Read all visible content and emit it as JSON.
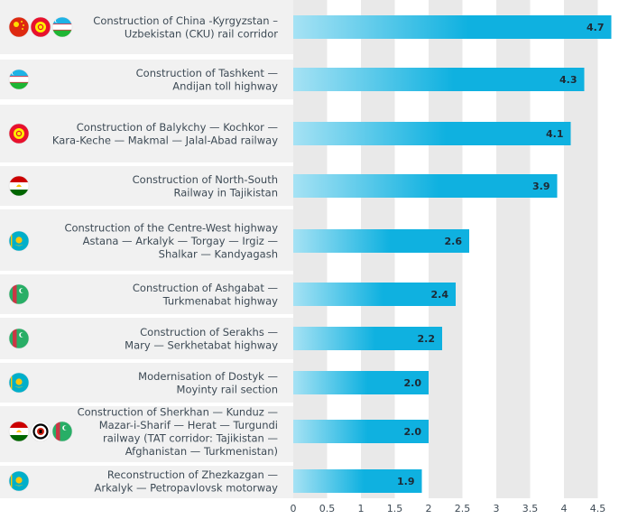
{
  "chart_data": {
    "type": "bar",
    "orientation": "horizontal",
    "title": "",
    "xlabel": "",
    "ylabel": "",
    "xlim": [
      0,
      4.7
    ],
    "ticks": [
      "0",
      "0.5",
      "1",
      "1.5",
      "2",
      "2.5",
      "3",
      "3.5",
      "4",
      "4.5"
    ],
    "grid": true,
    "categories": [
      "Construction of China -Kyrgyzstan – Uzbekistan (CKU) rail corridor",
      "Construction of Tashkent — Andijan toll highway",
      "Construction of Balykchy — Kochkor — Kara-Keche — Makmal — Jalal-Abad railway",
      "Construction of North-South Railway in Tajikistan",
      "Construction of the Centre-West highway Astana — Arkalyk — Torgay — Irgiz — Shalkar — Kandyagash",
      "Construction of Ashgabat — Turkmenabat highway",
      "Construction of Serakhs — Mary — Serkhetabat highway",
      "Modernisation of Dostyk — Moyinty rail section",
      "Construction of Sherkhan — Kunduz — Mazar-i-Sharif — Herat — Turgundi railway (TAT corridor: Tajikistan — Afghanistan — Turkmenistan)",
      "Reconstruction of Zhezkazgan — Arkalyk — Petropavlovsk motorway"
    ],
    "label_lines": [
      [
        "Construction of China -Kyrgyzstan –",
        "Uzbekistan (CKU) rail corridor"
      ],
      [
        "Construction of Tashkent —",
        "Andijan toll highway"
      ],
      [
        "Construction of Balykchy — Kochkor —",
        "Kara-Keche — Makmal — Jalal-Abad railway"
      ],
      [
        "Construction of North-South",
        "Railway in Tajikistan"
      ],
      [
        "Construction of the Centre-West highway",
        "Astana — Arkalyk — Torgay — Irgiz —",
        "Shalkar — Kandyagash"
      ],
      [
        "Construction of Ashgabat —",
        "Turkmenabat highway"
      ],
      [
        "Construction of Serakhs —",
        "Mary — Serkhetabat highway"
      ],
      [
        "Modernisation of Dostyk —",
        "Moyinty rail section"
      ],
      [
        "Construction of Sherkhan — Kunduz —",
        "Mazar-i-Sharif — Herat — Turgundi",
        "railway (TAT corridor: Tajikistan —",
        "Afghanistan — Turkmenistan)"
      ],
      [
        "Reconstruction of Zhezkazgan —",
        "Arkalyk — Petropavlovsk motorway"
      ]
    ],
    "values": [
      4.7,
      4.3,
      4.1,
      3.9,
      2.6,
      2.4,
      2.2,
      2.0,
      2.0,
      1.9
    ],
    "value_labels": [
      "4.7",
      "4.3",
      "4.1",
      "3.9",
      "2.6",
      "2.4",
      "2.2",
      "2.0",
      "2.0",
      "1.9"
    ],
    "flags": [
      [
        "china-flag-icon",
        "kyrgyzstan-flag-icon",
        "uzbekistan-flag-icon"
      ],
      [
        "uzbekistan-flag-icon"
      ],
      [
        "kyrgyzstan-flag-icon"
      ],
      [
        "tajikistan-flag-icon"
      ],
      [
        "kazakhstan-flag-icon"
      ],
      [
        "turkmenistan-flag-icon"
      ],
      [
        "turkmenistan-flag-icon"
      ],
      [
        "kazakhstan-flag-icon"
      ],
      [
        "tajikistan-flag-icon",
        "afghanistan-flag-icon",
        "turkmenistan-flag-icon"
      ],
      [
        "kazakhstan-flag-icon"
      ]
    ],
    "colors": {
      "bar_start": "#a6e2f4",
      "bar_end": "#0fb1e0",
      "row_band": "#f1f1f1",
      "grid_band": "#e9e9e9",
      "text": "#3d4a55"
    }
  }
}
